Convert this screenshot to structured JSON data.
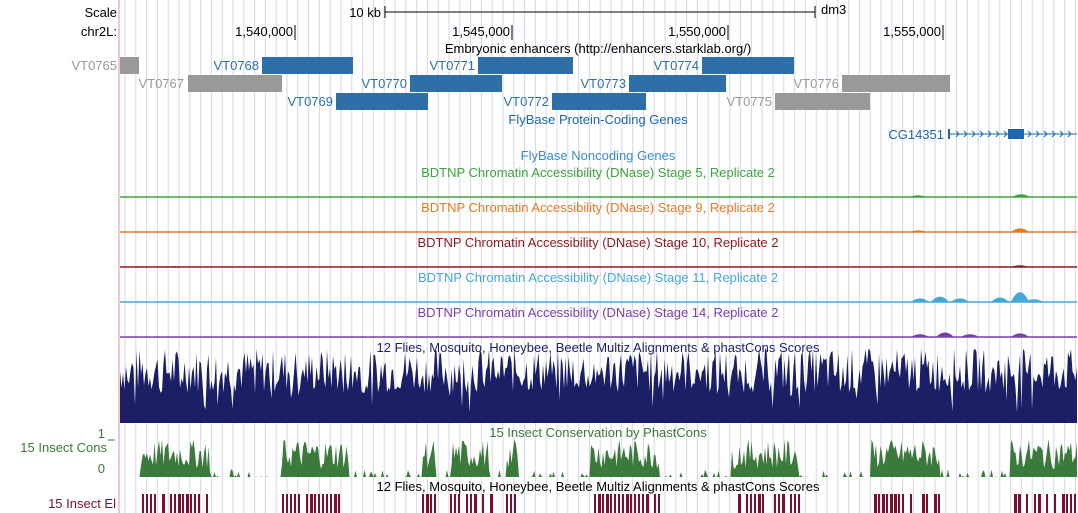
{
  "browser": {
    "assembly": "dm3",
    "scale_label": "Scale",
    "scale_value": "10 kb",
    "chrom_label": "chr2L:",
    "ruler_ticks": [
      "1,540,000",
      "1,545,000",
      "1,550,000",
      "1,555,000"
    ],
    "colors": {
      "enhancer_blue": "#2e6fa7",
      "enhancer_gray": "#999999",
      "gene_blue": "#1a66b0",
      "stage5": "#3aa63a",
      "stage9": "#e87a1e",
      "stage10": "#8b1a1a",
      "stage11": "#44a8d8",
      "stage14": "#7a3fa8",
      "multiz": "#1b1f66",
      "phastcons": "#3a7a3a",
      "elements": "#7a0f2e"
    },
    "tracks": {
      "enhancers": {
        "title": "Embryonic enhancers (http://enhancers.starklab.org/)",
        "items": [
          {
            "name": "VT0765",
            "highlight": false
          },
          {
            "name": "VT0767",
            "highlight": false
          },
          {
            "name": "VT0768",
            "highlight": true
          },
          {
            "name": "VT0769",
            "highlight": true
          },
          {
            "name": "VT0770",
            "highlight": true
          },
          {
            "name": "VT0771",
            "highlight": true
          },
          {
            "name": "VT0772",
            "highlight": true
          },
          {
            "name": "VT0773",
            "highlight": true
          },
          {
            "name": "VT0774",
            "highlight": true
          },
          {
            "name": "VT0775",
            "highlight": false
          },
          {
            "name": "VT0776",
            "highlight": false
          }
        ]
      },
      "coding_genes": {
        "title": "FlyBase Protein-Coding Genes",
        "gene": "CG14351"
      },
      "noncoding_genes": {
        "title": "FlyBase Noncoding Genes"
      },
      "dnase": [
        {
          "title": "BDTNP Chromatin Accessibility (DNase) Stage 5, Replicate 2",
          "color_key": "stage5"
        },
        {
          "title": "BDTNP Chromatin Accessibility (DNase) Stage 9, Replicate 2",
          "color_key": "stage9"
        },
        {
          "title": "BDTNP Chromatin Accessibility (DNase) Stage 10, Replicate 2",
          "color_key": "stage10"
        },
        {
          "title": "BDTNP Chromatin Accessibility (DNase) Stage 11, Replicate 2",
          "color_key": "stage11"
        },
        {
          "title": "BDTNP Chromatin Accessibility (DNase) Stage 14, Replicate 2",
          "color_key": "stage14"
        }
      ],
      "multiz": {
        "title": "12 Flies, Mosquito, Honeybee, Beetle Multiz Alignments & phastCons Scores"
      },
      "phastcons": {
        "title": "15 Insect Conservation by PhastCons",
        "side_label": "15 Insect Cons",
        "ymax": "1",
        "ymin": "0"
      },
      "elements": {
        "title": "12 Flies, Mosquito, Honeybee, Beetle Multiz Alignments & phastCons Scores",
        "side_label": "15 Insect El"
      }
    }
  }
}
